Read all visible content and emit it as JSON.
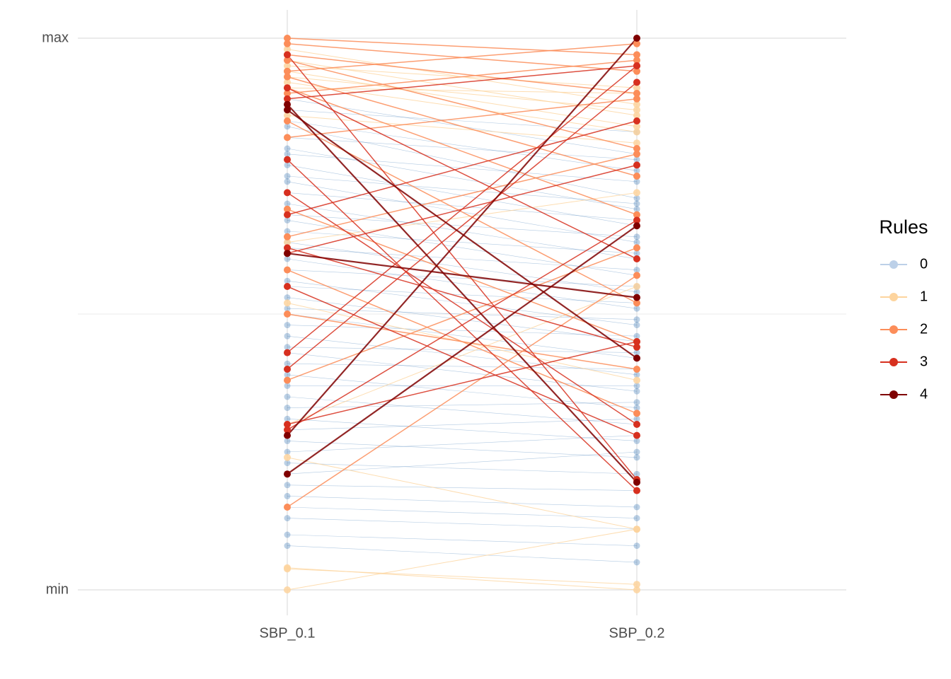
{
  "chart_data": {
    "type": "parallel",
    "categories": [
      "SBP_0.1",
      "SBP_0.2"
    ],
    "ylim": [
      0,
      1
    ],
    "yticks": [
      {
        "value": 0,
        "label": "min"
      },
      {
        "value": 1,
        "label": "max"
      }
    ],
    "y_minor_grid": [
      0.5
    ],
    "grid": true,
    "legend_title": "Rules",
    "legend": "right",
    "series": [
      {
        "name": "0",
        "color": "#2166ac",
        "key_color": "#bcd0e8",
        "lines": [
          [
            0.89,
            0.79
          ],
          [
            0.87,
            0.83
          ],
          [
            0.85,
            0.76
          ],
          [
            0.84,
            0.71
          ],
          [
            0.82,
            0.78
          ],
          [
            0.8,
            0.69
          ],
          [
            0.79,
            0.74
          ],
          [
            0.77,
            0.66
          ],
          [
            0.75,
            0.7
          ],
          [
            0.74,
            0.63
          ],
          [
            0.72,
            0.67
          ],
          [
            0.7,
            0.6
          ],
          [
            0.68,
            0.64
          ],
          [
            0.67,
            0.57
          ],
          [
            0.65,
            0.61
          ],
          [
            0.63,
            0.54
          ],
          [
            0.62,
            0.58
          ],
          [
            0.6,
            0.51
          ],
          [
            0.58,
            0.55
          ],
          [
            0.56,
            0.48
          ],
          [
            0.55,
            0.52
          ],
          [
            0.53,
            0.45
          ],
          [
            0.51,
            0.49
          ],
          [
            0.5,
            0.42
          ],
          [
            0.48,
            0.46
          ],
          [
            0.46,
            0.39
          ],
          [
            0.44,
            0.43
          ],
          [
            0.43,
            0.36
          ],
          [
            0.41,
            0.4
          ],
          [
            0.39,
            0.33
          ],
          [
            0.37,
            0.37
          ],
          [
            0.35,
            0.3
          ],
          [
            0.33,
            0.34
          ],
          [
            0.31,
            0.27
          ],
          [
            0.29,
            0.31
          ],
          [
            0.27,
            0.24
          ],
          [
            0.25,
            0.28
          ],
          [
            0.23,
            0.21
          ],
          [
            0.21,
            0.25
          ],
          [
            0.19,
            0.18
          ],
          [
            0.17,
            0.15
          ],
          [
            0.15,
            0.13
          ],
          [
            0.13,
            0.11
          ],
          [
            0.1,
            0.08
          ],
          [
            0.08,
            0.05
          ]
        ]
      },
      {
        "name": "1",
        "color": "#fdd49e",
        "key_color": "#fdd49e",
        "lines": [
          [
            0.98,
            0.88
          ],
          [
            0.96,
            0.86
          ],
          [
            0.95,
            0.91
          ],
          [
            0.94,
            0.84
          ],
          [
            0.93,
            0.87
          ],
          [
            0.92,
            0.83
          ],
          [
            0.91,
            0.9
          ],
          [
            0.86,
            0.81
          ],
          [
            0.63,
            0.72
          ],
          [
            0.52,
            0.38
          ],
          [
            0.3,
            0.55
          ],
          [
            0.24,
            0.11
          ],
          [
            0.0,
            0.11
          ],
          [
            0.04,
            0.0
          ],
          [
            0.038,
            0.01
          ]
        ]
      },
      {
        "name": "2",
        "color": "#fc8d59",
        "key_color": "#fc8d59",
        "lines": [
          [
            1.0,
            0.97
          ],
          [
            0.99,
            0.94
          ],
          [
            0.97,
            0.9
          ],
          [
            0.96,
            0.8
          ],
          [
            0.94,
            0.99
          ],
          [
            0.93,
            0.75
          ],
          [
            0.91,
            0.68
          ],
          [
            0.9,
            0.96
          ],
          [
            0.85,
            0.52
          ],
          [
            0.82,
            0.89
          ],
          [
            0.69,
            0.45
          ],
          [
            0.64,
            0.79
          ],
          [
            0.58,
            0.32
          ],
          [
            0.5,
            0.4
          ],
          [
            0.38,
            0.62
          ],
          [
            0.15,
            0.57
          ]
        ]
      },
      {
        "name": "3",
        "color": "#d7301f",
        "key_color": "#d7301f",
        "lines": [
          [
            0.97,
            0.2
          ],
          [
            0.91,
            0.6
          ],
          [
            0.89,
            0.95
          ],
          [
            0.78,
            0.18
          ],
          [
            0.72,
            0.3
          ],
          [
            0.68,
            0.85
          ],
          [
            0.62,
            0.44
          ],
          [
            0.61,
            0.77
          ],
          [
            0.55,
            0.28
          ],
          [
            0.43,
            0.95
          ],
          [
            0.4,
            0.92
          ],
          [
            0.3,
            0.45
          ],
          [
            0.29,
            0.67
          ]
        ]
      },
      {
        "name": "4",
        "color": "#7f0000",
        "key_color": "#7f0000",
        "lines": [
          [
            0.88,
            0.195
          ],
          [
            0.87,
            0.42
          ],
          [
            0.28,
            1.0
          ],
          [
            0.21,
            0.66
          ],
          [
            0.61,
            0.53
          ]
        ]
      }
    ]
  }
}
